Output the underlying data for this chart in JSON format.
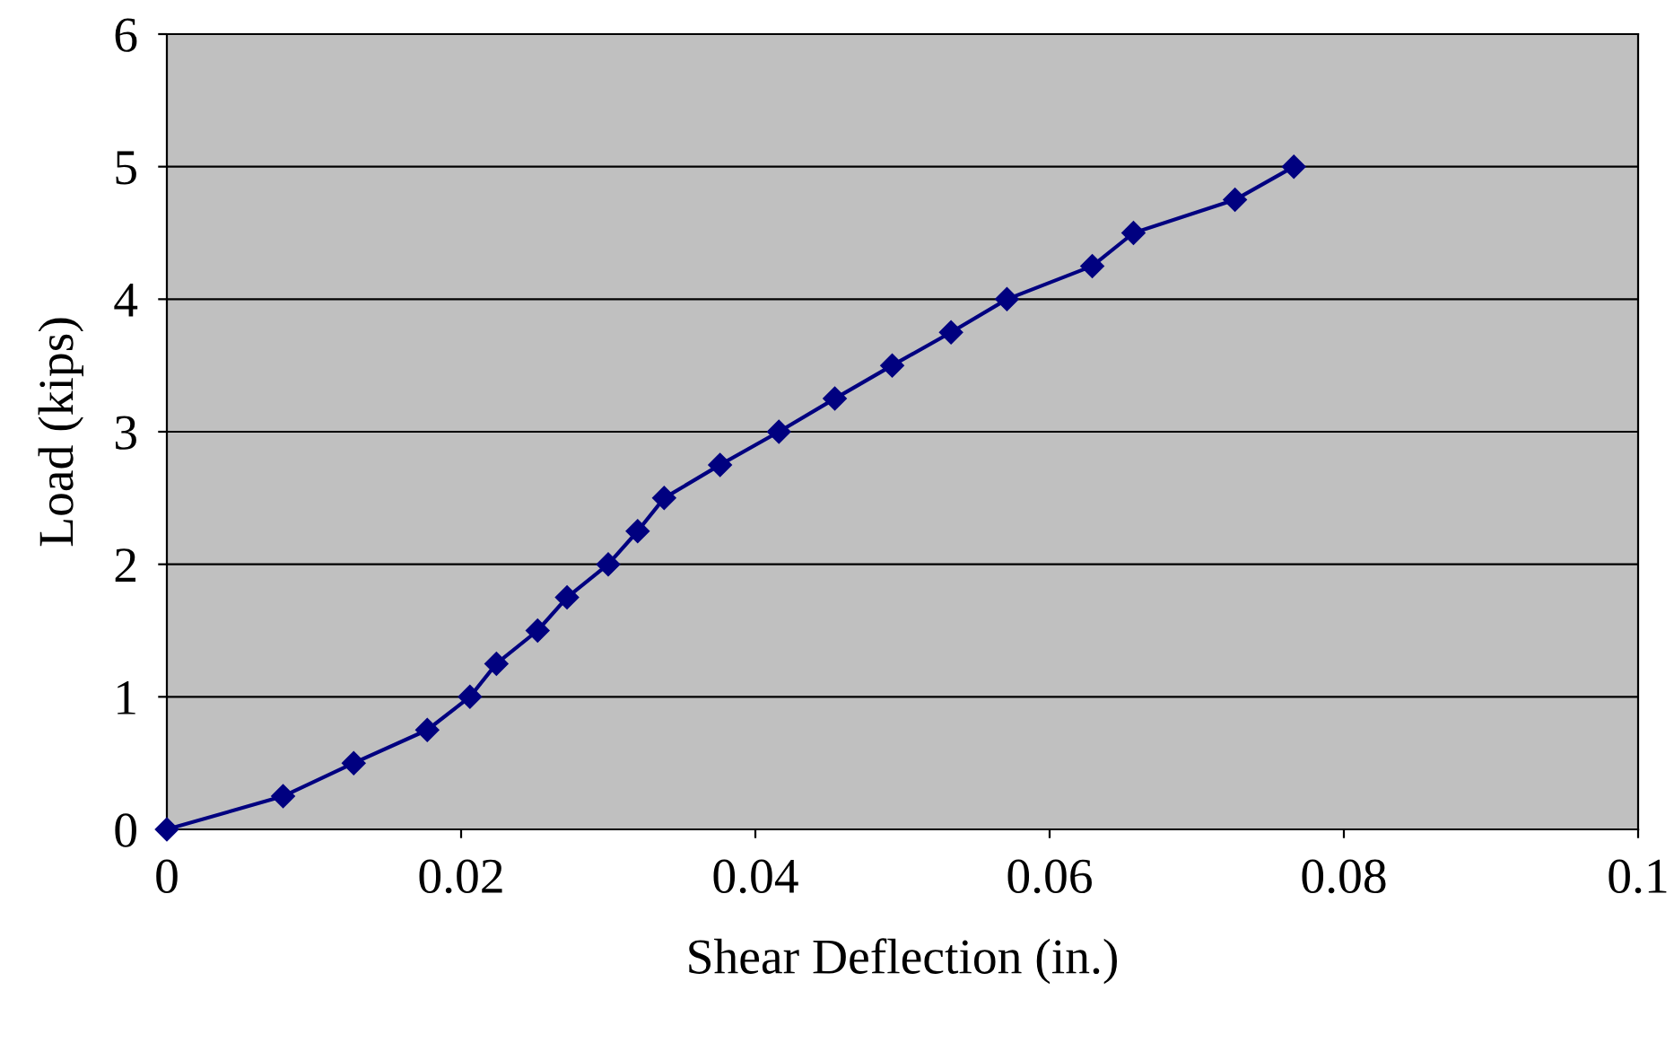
{
  "chart_data": {
    "type": "line",
    "xlabel": "Shear Deflection (in.)",
    "ylabel": "Load (kips)",
    "x": [
      0,
      0.0079,
      0.0127,
      0.0177,
      0.0206,
      0.0224,
      0.0252,
      0.0272,
      0.03,
      0.032,
      0.0338,
      0.0376,
      0.0416,
      0.0454,
      0.0493,
      0.0533,
      0.0571,
      0.0629,
      0.0657,
      0.0726,
      0.0766
    ],
    "series": [
      {
        "color": "#000080",
        "values": [
          0,
          0.25,
          0.5,
          0.75,
          1,
          1.25,
          1.5,
          1.75,
          2,
          2.25,
          2.5,
          2.75,
          3,
          3.25,
          3.5,
          3.75,
          4,
          4.25,
          4.5,
          4.75,
          5
        ]
      }
    ],
    "xlim": [
      0,
      0.1
    ],
    "xticks": [
      0,
      0.02,
      0.04,
      0.06,
      0.08,
      0.1
    ],
    "ylim": [
      0,
      6
    ],
    "yticks": [
      0,
      1,
      2,
      3,
      4,
      5,
      6
    ],
    "grid": "y",
    "legend": false,
    "marker": "diamond",
    "line_style": "solid"
  }
}
